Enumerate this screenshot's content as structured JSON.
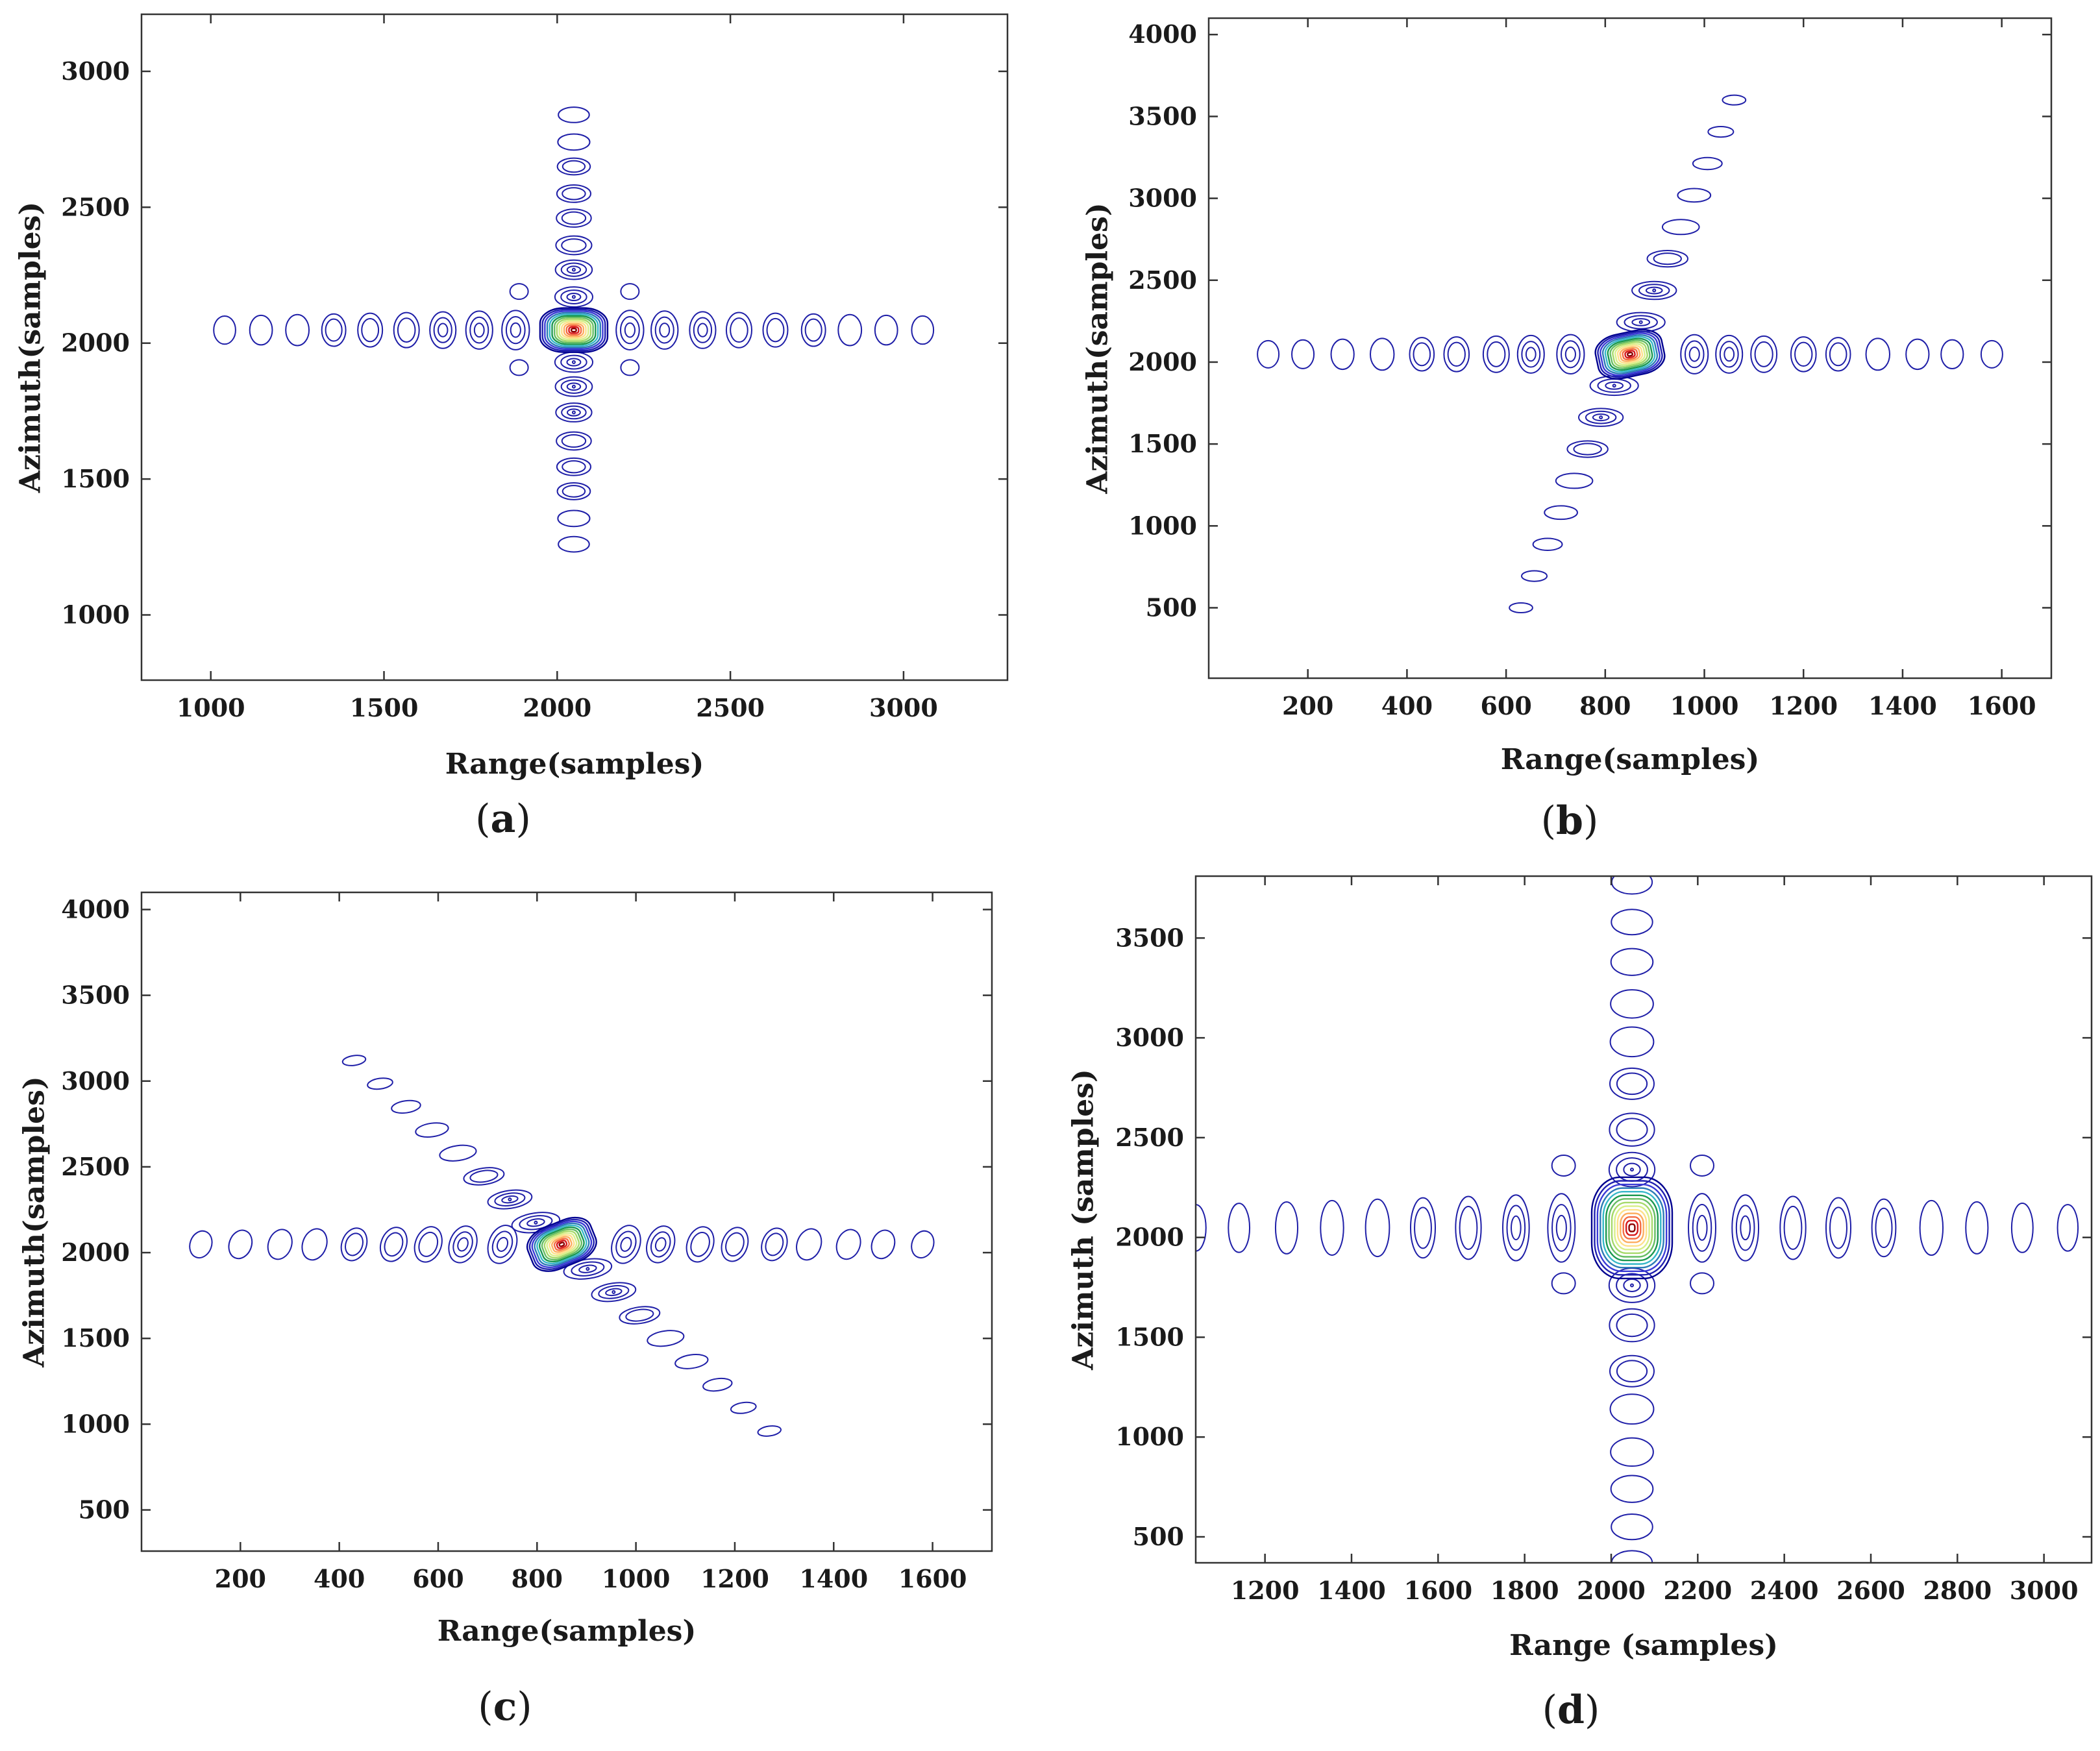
{
  "figure": {
    "panels": [
      "(a)",
      "(b)",
      "(c)",
      "(d)"
    ]
  },
  "chart_data": [
    {
      "type": "contour",
      "panel_label": "(a)",
      "xlabel": "Range(samples)",
      "ylabel": "Azimuth(samples)",
      "xlim": [
        800,
        3300
      ],
      "ylim": [
        760,
        3210
      ],
      "xticks": [
        1000,
        1500,
        2000,
        2500,
        3000
      ],
      "yticks": [
        1000,
        1500,
        2000,
        2500,
        3000
      ],
      "peak": {
        "x": 2048,
        "y": 2048
      },
      "range_sidelobes_x": [
        1040,
        1145,
        1250,
        1355,
        1460,
        1565,
        1670,
        1775,
        1880,
        2210,
        2310,
        2420,
        2525,
        2630,
        2740,
        2845,
        2950,
        3055
      ],
      "azimuth_sidelobes_y": [
        1260,
        1355,
        1455,
        1545,
        1640,
        1745,
        1840,
        1930,
        2170,
        2270,
        2360,
        2460,
        2550,
        2650,
        2740,
        2840
      ],
      "cross_lobes": [
        [
          1890,
          2190
        ],
        [
          2210,
          2190
        ],
        [
          1890,
          1910
        ],
        [
          2210,
          1910
        ]
      ],
      "rotation_deg": 0
    },
    {
      "type": "contour",
      "panel_label": "(b)",
      "xlabel": "Range(samples)",
      "ylabel": "Azimuth(samples)",
      "xlim": [
        0,
        1700
      ],
      "ylim": [
        70,
        4100
      ],
      "xticks": [
        200,
        400,
        600,
        800,
        1000,
        1200,
        1400,
        1600
      ],
      "yticks": [
        500,
        1000,
        1500,
        2000,
        2500,
        3000,
        3500,
        4000
      ],
      "peak": {
        "x": 850,
        "y": 2048
      },
      "range_sidelobes_x": [
        120,
        190,
        270,
        350,
        430,
        500,
        580,
        650,
        730,
        980,
        1050,
        1120,
        1200,
        1270,
        1350,
        1430,
        1500,
        1580
      ],
      "azimuth_lobe_end_top": [
        1060,
        3600
      ],
      "azimuth_lobe_end_bottom": [
        630,
        500
      ],
      "rotation_deg": 22
    },
    {
      "type": "contour",
      "panel_label": "(c)",
      "xlabel": "Range(samples)",
      "ylabel": "Azimuth(samples)",
      "xlim": [
        0,
        1720
      ],
      "ylim": [
        260,
        4100
      ],
      "xticks": [
        200,
        400,
        600,
        800,
        1000,
        1200,
        1400,
        1600
      ],
      "yticks": [
        500,
        1000,
        1500,
        2000,
        2500,
        3000,
        3500,
        4000
      ],
      "peak": {
        "x": 850,
        "y": 2048
      },
      "range_sidelobes_x": [
        120,
        200,
        280,
        350,
        430,
        510,
        580,
        650,
        730,
        980,
        1050,
        1130,
        1200,
        1280,
        1350,
        1430,
        1500,
        1580
      ],
      "azimuth_lobe_end_top": [
        430,
        3120
      ],
      "azimuth_lobe_end_bottom": [
        1270,
        960
      ],
      "rotation_deg": -55
    },
    {
      "type": "contour",
      "panel_label": "(d)",
      "xlabel": "Range (samples)",
      "ylabel": "Azimuth (samples)",
      "xlim": [
        1040,
        3110
      ],
      "ylim": [
        370,
        3810
      ],
      "xticks": [
        1200,
        1400,
        1600,
        1800,
        2000,
        2200,
        2400,
        2600,
        2800,
        3000
      ],
      "yticks": [
        500,
        1000,
        1500,
        2000,
        2500,
        3000,
        3500
      ],
      "peak": {
        "x": 2048,
        "y": 2048
      },
      "range_sidelobes_x": [
        1040,
        1140,
        1250,
        1355,
        1460,
        1565,
        1670,
        1780,
        1885,
        2210,
        2310,
        2420,
        2525,
        2630,
        2740,
        2845,
        2950,
        3055
      ],
      "azimuth_sidelobes_y": [
        370,
        550,
        740,
        925,
        1140,
        1330,
        1560,
        1760,
        2340,
        2540,
        2770,
        2980,
        3170,
        3380,
        3580,
        3780
      ],
      "cross_lobes": [
        [
          1890,
          2360
        ],
        [
          2210,
          2360
        ],
        [
          1890,
          1770
        ],
        [
          2210,
          1770
        ]
      ],
      "rotation_deg": 0
    }
  ]
}
